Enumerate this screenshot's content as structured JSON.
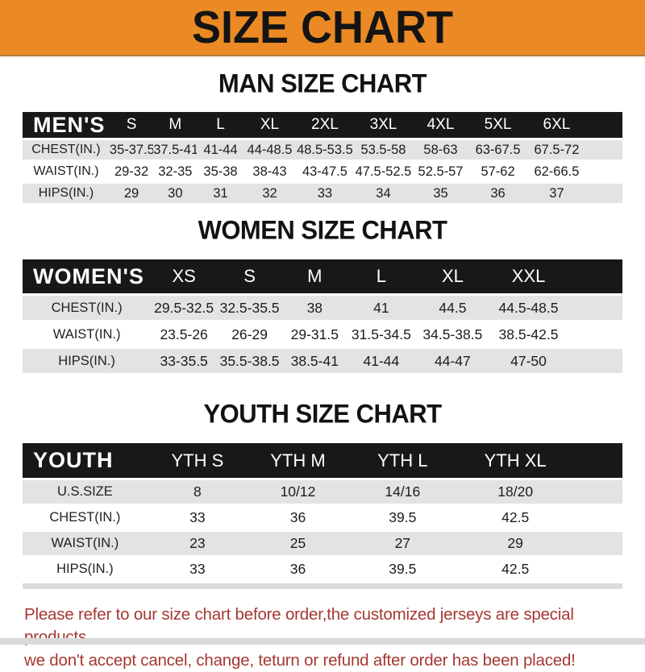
{
  "banner": {
    "title": "SIZE CHART"
  },
  "sections": {
    "men": {
      "heading": "MAN SIZE CHART"
    },
    "women": {
      "heading": "WOMEN SIZE CHART"
    },
    "youth": {
      "heading": "YOUTH SIZE CHART"
    }
  },
  "tables": {
    "men": {
      "header_label": "MEN'S",
      "columns": [
        "S",
        "M",
        "L",
        "XL",
        "2XL",
        "3XL",
        "4XL",
        "5XL",
        "6XL"
      ],
      "rows": [
        {
          "label": "CHEST(IN.)",
          "values": [
            "35-37.5",
            "37.5-41",
            "41-44",
            "44-48.5",
            "48.5-53.5",
            "53.5-58",
            "58-63",
            "63-67.5",
            "67.5-72"
          ]
        },
        {
          "label": "WAIST(IN.)",
          "values": [
            "29-32",
            "32-35",
            "35-38",
            "38-43",
            "43-47.5",
            "47.5-52.5",
            "52.5-57",
            "57-62",
            "62-66.5"
          ]
        },
        {
          "label": "HIPS(IN.)",
          "values": [
            "29",
            "30",
            "31",
            "32",
            "33",
            "34",
            "35",
            "36",
            "37"
          ]
        }
      ]
    },
    "women": {
      "header_label": "WOMEN'S",
      "columns": [
        "XS",
        "S",
        "M",
        "L",
        "XL",
        "XXL"
      ],
      "rows": [
        {
          "label": "CHEST(IN.)",
          "values": [
            "29.5-32.5",
            "32.5-35.5",
            "38",
            "41",
            "44.5",
            "44.5-48.5"
          ]
        },
        {
          "label": "WAIST(IN.)",
          "values": [
            "23.5-26",
            "26-29",
            "29-31.5",
            "31.5-34.5",
            "34.5-38.5",
            "38.5-42.5"
          ]
        },
        {
          "label": "HIPS(IN.)",
          "values": [
            "33-35.5",
            "35.5-38.5",
            "38.5-41",
            "41-44",
            "44-47",
            "47-50"
          ]
        }
      ]
    },
    "youth": {
      "header_label": "YOUTH",
      "columns": [
        "YTH S",
        "YTH M",
        "YTH L",
        "YTH XL"
      ],
      "rows": [
        {
          "label": "U.S.SIZE",
          "values": [
            "8",
            "10/12",
            "14/16",
            "18/20"
          ]
        },
        {
          "label": "CHEST(IN.)",
          "values": [
            "33",
            "36",
            "39.5",
            "42.5"
          ]
        },
        {
          "label": "WAIST(IN.)",
          "values": [
            "23",
            "25",
            "27",
            "29"
          ]
        },
        {
          "label": "HIPS(IN.)",
          "values": [
            "33",
            "36",
            "39.5",
            "42.5"
          ]
        }
      ]
    }
  },
  "footnote": {
    "lines": [
      "Please refer to our size chart before order,the customized jerseys are special products,",
      "we don't accept cancel, change, teturn or refund after order has been placed!"
    ]
  },
  "colors": {
    "banner_orange": "#EB8A24",
    "table_header_black": "#181818",
    "row_stripe_gray": "#E3E3E3",
    "note_red": "#A53831",
    "bottom_strip_gray": "#D9D9D9"
  }
}
